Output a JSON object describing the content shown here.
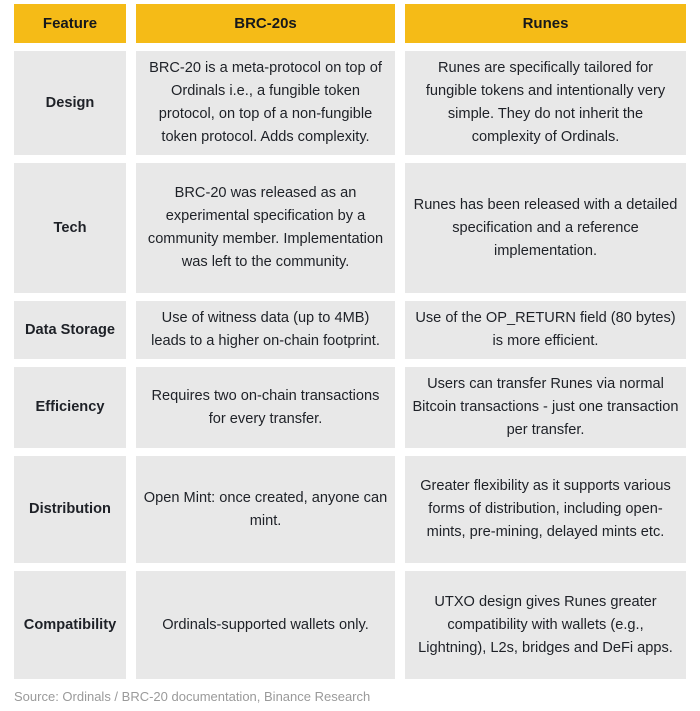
{
  "colors": {
    "accent": "#F5BB17",
    "cell_bg": "#E8E8E8",
    "text": "#1E2127",
    "footer_text": "#9A9A9A",
    "page_bg": "#FFFFFF"
  },
  "header": {
    "feature": "Feature",
    "brc20": "BRC-20s",
    "runes": "Runes"
  },
  "rows": [
    {
      "feature": "Design",
      "brc20": "BRC-20 is a meta-protocol on top of Ordinals i.e., a fungible token protocol, on top of a non-fungible token protocol. Adds complexity.",
      "runes": "Runes are specifically tailored for fungible tokens and intentionally very simple. They do not inherit the complexity of Ordinals."
    },
    {
      "feature": "Tech",
      "brc20": "BRC-20 was released as an experimental specification by a community member. Implementation was left to the community.",
      "runes": "Runes has been released with a detailed specification and a reference implementation."
    },
    {
      "feature": "Data Storage",
      "brc20": "Use of witness data (up to 4MB) leads to a higher on-chain footprint.",
      "runes": "Use of the OP_RETURN field (80 bytes) is more efficient."
    },
    {
      "feature": "Efficiency",
      "brc20": "Requires two on-chain transactions for every transfer.",
      "runes": "Users can transfer Runes via normal Bitcoin transactions - just one transaction per transfer."
    },
    {
      "feature": "Distribution",
      "brc20": "Open Mint: once created, anyone can mint.",
      "runes": "Greater flexibility as it supports various forms of distribution, including open-mints, pre-mining, delayed mints etc."
    },
    {
      "feature": "Compatibility",
      "brc20": "Ordinals-supported wallets only.",
      "runes": "UTXO design gives Runes greater compatibility with wallets (e.g., Lightning), L2s, bridges and DeFi apps."
    }
  ],
  "footer": {
    "source": "Source: Ordinals / BRC-20 documentation, Binance Research"
  }
}
